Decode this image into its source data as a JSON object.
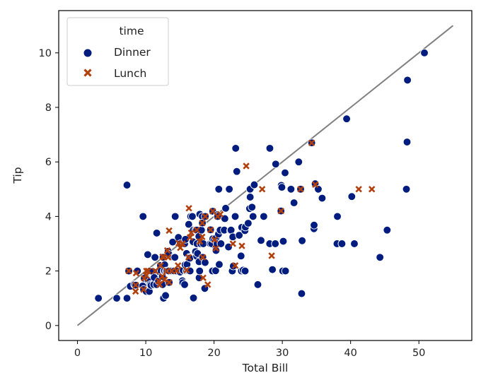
{
  "chart_data": {
    "type": "scatter",
    "xlabel": "Total Bill",
    "ylabel": "Tip",
    "xlim": [
      -2.75,
      57.75
    ],
    "ylim": [
      -0.55,
      11.55
    ],
    "xticks": [
      0,
      10,
      20,
      30,
      40,
      50
    ],
    "yticks": [
      0,
      2,
      4,
      6,
      8,
      10
    ],
    "grid": false,
    "legend": {
      "title": "time",
      "placement": "top-left"
    },
    "reference_line": {
      "from": [
        0,
        0
      ],
      "to": [
        55,
        11
      ],
      "color": "#808080"
    },
    "series": [
      {
        "name": "Dinner",
        "marker": "circle",
        "color": "#001c7f",
        "points": [
          [
            3.07,
            1.0
          ],
          [
            5.75,
            1.0
          ],
          [
            7.25,
            1.0
          ],
          [
            7.25,
            5.15
          ],
          [
            7.51,
            2.0
          ],
          [
            7.74,
            1.44
          ],
          [
            8.35,
            1.5
          ],
          [
            8.52,
            1.48
          ],
          [
            8.77,
            2.0
          ],
          [
            9.55,
            1.45
          ],
          [
            9.6,
            4.0
          ],
          [
            9.68,
            1.32
          ],
          [
            9.78,
            1.73
          ],
          [
            10.07,
            1.25
          ],
          [
            10.27,
            1.71
          ],
          [
            10.29,
            2.6
          ],
          [
            10.33,
            1.67
          ],
          [
            10.34,
            1.66
          ],
          [
            10.51,
            1.25
          ],
          [
            10.59,
            1.61
          ],
          [
            10.63,
            2.0
          ],
          [
            10.65,
            1.5
          ],
          [
            10.77,
            1.47
          ],
          [
            11.02,
            1.98
          ],
          [
            11.17,
            1.5
          ],
          [
            11.24,
            1.76
          ],
          [
            11.35,
            2.5
          ],
          [
            11.59,
            1.5
          ],
          [
            11.61,
            3.39
          ],
          [
            11.87,
            1.63
          ],
          [
            12.02,
            1.97
          ],
          [
            12.16,
            2.2
          ],
          [
            12.26,
            2.0
          ],
          [
            12.43,
            1.8
          ],
          [
            12.46,
            1.5
          ],
          [
            12.54,
            2.5
          ],
          [
            12.6,
            1.0
          ],
          [
            12.69,
            2.0
          ],
          [
            12.74,
            2.01
          ],
          [
            12.76,
            2.23
          ],
          [
            12.9,
            1.1
          ],
          [
            13.0,
            2.0
          ],
          [
            13.13,
            2.0
          ],
          [
            13.28,
            2.72
          ],
          [
            13.37,
            2.0
          ],
          [
            13.39,
            2.61
          ],
          [
            13.42,
            1.58
          ],
          [
            13.81,
            2.0
          ],
          [
            13.94,
            3.06
          ],
          [
            14.07,
            2.5
          ],
          [
            14.15,
            2.0
          ],
          [
            14.26,
            2.5
          ],
          [
            14.31,
            4.0
          ],
          [
            14.48,
            2.0
          ],
          [
            14.78,
            3.23
          ],
          [
            15.04,
            1.96
          ],
          [
            15.06,
            3.0
          ],
          [
            15.36,
            1.64
          ],
          [
            15.42,
            1.57
          ],
          [
            15.48,
            2.02
          ],
          [
            15.53,
            3.0
          ],
          [
            15.69,
            1.5
          ],
          [
            15.69,
            3.0
          ],
          [
            15.77,
            2.23
          ],
          [
            15.81,
            3.16
          ],
          [
            15.95,
            2.0
          ],
          [
            15.98,
            2.64
          ],
          [
            16.0,
            2.0
          ],
          [
            16.04,
            2.24
          ],
          [
            16.21,
            2.0
          ],
          [
            16.29,
            3.71
          ],
          [
            16.31,
            2.0
          ],
          [
            16.4,
            2.5
          ],
          [
            16.45,
            2.47
          ],
          [
            16.49,
            2.0
          ],
          [
            16.58,
            4.0
          ],
          [
            16.82,
            4.0
          ],
          [
            16.93,
            3.07
          ],
          [
            16.97,
            3.5
          ],
          [
            16.99,
            1.01
          ],
          [
            17.29,
            2.71
          ],
          [
            17.31,
            3.5
          ],
          [
            17.46,
            2.54
          ],
          [
            17.47,
            3.5
          ],
          [
            17.51,
            3.0
          ],
          [
            17.59,
            2.64
          ],
          [
            17.78,
            3.27
          ],
          [
            17.81,
            2.34
          ],
          [
            17.82,
            1.75
          ],
          [
            17.89,
            2.0
          ],
          [
            17.92,
            4.08
          ],
          [
            18.04,
            3.0
          ],
          [
            18.15,
            3.5
          ],
          [
            18.24,
            3.76
          ],
          [
            18.28,
            4.0
          ],
          [
            18.29,
            3.76
          ],
          [
            18.35,
            2.5
          ],
          [
            18.43,
            3.0
          ],
          [
            18.64,
            1.36
          ],
          [
            18.69,
            2.31
          ],
          [
            18.71,
            4.0
          ],
          [
            19.44,
            3.0
          ],
          [
            19.49,
            3.51
          ],
          [
            19.65,
            3.0
          ],
          [
            19.77,
            2.0
          ],
          [
            19.81,
            4.19
          ],
          [
            19.82,
            3.18
          ],
          [
            20.08,
            3.15
          ],
          [
            20.23,
            2.01
          ],
          [
            20.27,
            2.83
          ],
          [
            20.29,
            2.75
          ],
          [
            20.29,
            3.21
          ],
          [
            20.45,
            3.0
          ],
          [
            20.49,
            4.06
          ],
          [
            20.53,
            4.0
          ],
          [
            20.65,
            3.35
          ],
          [
            20.69,
            5.0
          ],
          [
            20.76,
            2.24
          ],
          [
            20.9,
            3.5
          ],
          [
            21.01,
            3.0
          ],
          [
            21.5,
            3.5
          ],
          [
            21.58,
            3.92
          ],
          [
            21.7,
            4.3
          ],
          [
            22.12,
            2.88
          ],
          [
            22.23,
            5.0
          ],
          [
            22.42,
            3.48
          ],
          [
            22.49,
            3.5
          ],
          [
            22.67,
            2.0
          ],
          [
            22.75,
            3.25
          ],
          [
            22.82,
            2.18
          ],
          [
            23.1,
            4.0
          ],
          [
            23.17,
            6.5
          ],
          [
            23.33,
            5.65
          ],
          [
            23.68,
            3.31
          ],
          [
            23.95,
            2.55
          ],
          [
            24.01,
            2.0
          ],
          [
            24.06,
            3.6
          ],
          [
            24.27,
            2.03
          ],
          [
            24.52,
            3.48
          ],
          [
            24.55,
            2.0
          ],
          [
            24.59,
            3.61
          ],
          [
            25.0,
            3.75
          ],
          [
            25.21,
            4.29
          ],
          [
            25.28,
            5.0
          ],
          [
            25.29,
            4.71
          ],
          [
            25.56,
            4.34
          ],
          [
            25.71,
            4.0
          ],
          [
            25.89,
            5.16
          ],
          [
            26.41,
            1.5
          ],
          [
            26.86,
            3.14
          ],
          [
            26.88,
            3.12
          ],
          [
            27.2,
            4.0
          ],
          [
            27.28,
            4.0
          ],
          [
            28.15,
            3.0
          ],
          [
            28.17,
            6.5
          ],
          [
            28.55,
            2.05
          ],
          [
            28.97,
            3.0
          ],
          [
            29.03,
            5.92
          ],
          [
            29.8,
            4.2
          ],
          [
            29.85,
            5.14
          ],
          [
            29.93,
            5.07
          ],
          [
            30.06,
            2.0
          ],
          [
            30.14,
            3.09
          ],
          [
            30.4,
            5.6
          ],
          [
            30.46,
            2.0
          ],
          [
            31.27,
            5.0
          ],
          [
            31.71,
            4.5
          ],
          [
            32.4,
            6.0
          ],
          [
            32.68,
            5.0
          ],
          [
            32.83,
            1.17
          ],
          [
            32.9,
            3.11
          ],
          [
            34.3,
            6.7
          ],
          [
            34.63,
            3.55
          ],
          [
            34.65,
            3.68
          ],
          [
            34.81,
            5.2
          ],
          [
            35.26,
            5.0
          ],
          [
            35.83,
            4.67
          ],
          [
            38.01,
            3.0
          ],
          [
            38.07,
            4.0
          ],
          [
            38.73,
            3.0
          ],
          [
            39.42,
            7.58
          ],
          [
            40.17,
            4.73
          ],
          [
            40.55,
            3.0
          ],
          [
            44.3,
            2.5
          ],
          [
            45.35,
            3.5
          ],
          [
            48.17,
            5.0
          ],
          [
            48.27,
            6.73
          ],
          [
            48.33,
            9.0
          ],
          [
            50.81,
            10.0
          ]
        ]
      },
      {
        "name": "Lunch",
        "marker": "x",
        "color": "#b1400d",
        "points": [
          [
            7.51,
            2.0
          ],
          [
            8.51,
            1.25
          ],
          [
            8.52,
            1.48
          ],
          [
            8.58,
            1.92
          ],
          [
            9.68,
            1.32
          ],
          [
            10.07,
            1.83
          ],
          [
            10.09,
            2.0
          ],
          [
            10.33,
            2.0
          ],
          [
            10.34,
            2.0
          ],
          [
            11.38,
            2.0
          ],
          [
            11.87,
            1.63
          ],
          [
            12.03,
            1.5
          ],
          [
            12.16,
            2.2
          ],
          [
            12.43,
            1.8
          ],
          [
            12.48,
            2.52
          ],
          [
            12.66,
            2.5
          ],
          [
            13.03,
            2.0
          ],
          [
            13.16,
            2.75
          ],
          [
            13.27,
            2.5
          ],
          [
            13.42,
            3.48
          ],
          [
            13.42,
            1.58
          ],
          [
            13.81,
            2.0
          ],
          [
            14.52,
            2.0
          ],
          [
            14.73,
            2.2
          ],
          [
            15.38,
            3.0
          ],
          [
            15.98,
            2.03
          ],
          [
            16.27,
            2.5
          ],
          [
            16.47,
            3.23
          ],
          [
            16.66,
            3.4
          ],
          [
            17.47,
            3.5
          ],
          [
            17.92,
            3.08
          ],
          [
            18.26,
            3.25
          ],
          [
            18.29,
            3.76
          ],
          [
            18.35,
            2.5
          ],
          [
            18.71,
            4.0
          ],
          [
            19.08,
            1.5
          ],
          [
            19.49,
            3.51
          ],
          [
            19.81,
            4.19
          ],
          [
            20.08,
            3.15
          ],
          [
            20.27,
            2.83
          ],
          [
            20.53,
            4.0
          ],
          [
            20.92,
            4.08
          ],
          [
            22.76,
            3.0
          ],
          [
            23.1,
            2.2
          ],
          [
            24.08,
            2.92
          ],
          [
            24.71,
            5.85
          ],
          [
            27.05,
            5.0
          ],
          [
            28.44,
            2.56
          ],
          [
            29.8,
            4.2
          ],
          [
            32.68,
            5.0
          ],
          [
            34.3,
            6.7
          ],
          [
            34.83,
            5.17
          ],
          [
            41.19,
            5.0
          ],
          [
            43.11,
            5.0
          ],
          [
            18.4,
            1.75
          ],
          [
            15.06,
            2.85
          ],
          [
            16.32,
            4.3
          ],
          [
            12.74,
            1.68
          ],
          [
            14.83,
            3.02
          ],
          [
            9.78,
            1.73
          ]
        ]
      }
    ]
  }
}
